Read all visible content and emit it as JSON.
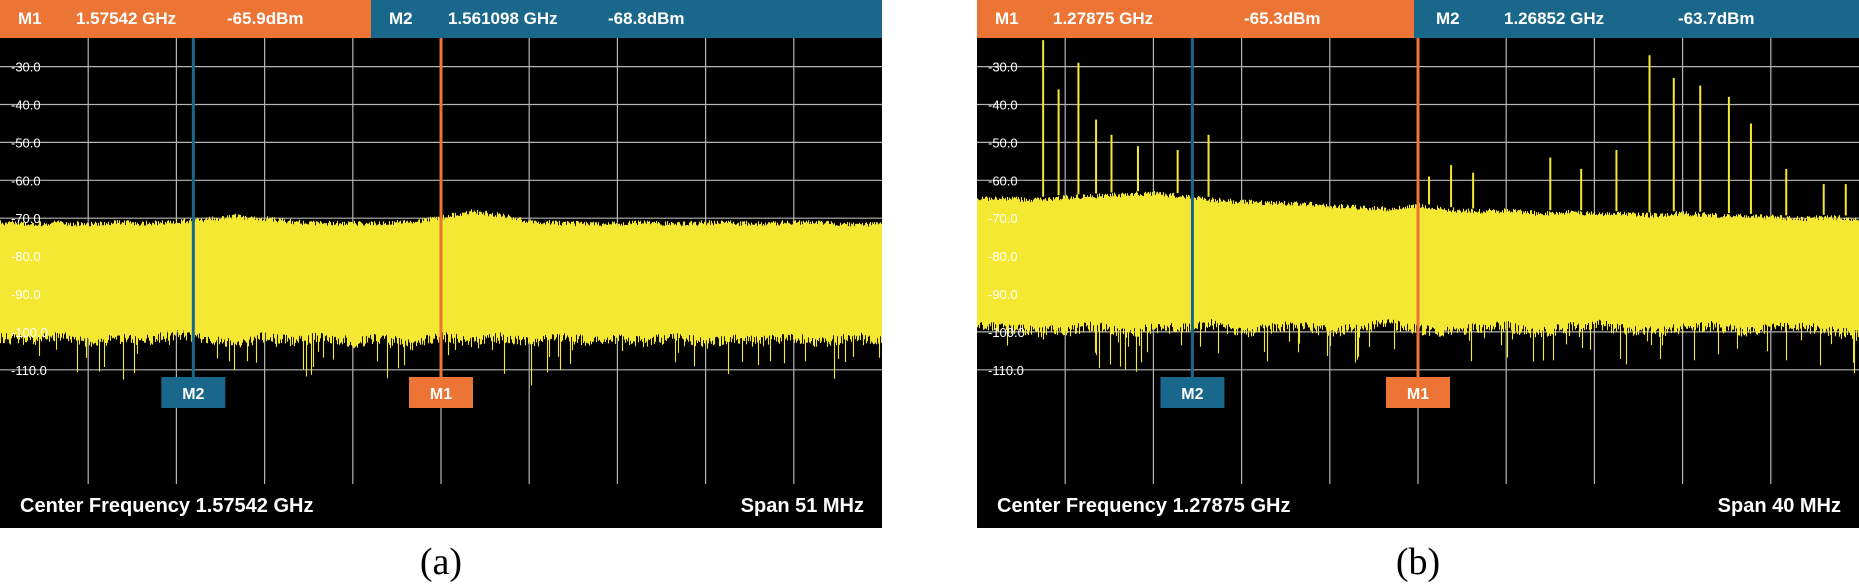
{
  "colors": {
    "marker1": "#ec7434",
    "marker2": "#19678a",
    "trace": "#f4e832",
    "grid": "#b4b4b4",
    "background": "#000000"
  },
  "chart_data": [
    {
      "type": "line",
      "caption": "(a)",
      "markers": [
        {
          "label": "M1",
          "frequency": "1.57542 GHz",
          "level": "-65.9dBm",
          "frequency_ghz": 1.57542,
          "level_dbm": -65.9
        },
        {
          "label": "M2",
          "frequency": "1.561098 GHz",
          "level": "-68.8dBm",
          "frequency_ghz": 1.561098,
          "level_dbm": -68.8
        }
      ],
      "center_frequency_label": "Center Frequency 1.57542 GHz",
      "span_label": "Span 51 MHz",
      "center_frequency_ghz": 1.57542,
      "span_mhz": 51,
      "xlim_ghz": [
        1.54992,
        1.60092
      ],
      "y_tick_labels": [
        "-30.0",
        "-40.0",
        "-50.0",
        "-60.0",
        "-70.0",
        "-80.0",
        "-90.0",
        "-100.0",
        "-110.0"
      ],
      "ylim": [
        -120,
        -21
      ],
      "grid": true,
      "series": [
        {
          "upper_envelope_dbm": [
            -70.5,
            -70.8,
            -70.6,
            -70.9,
            -70.5,
            -70.6,
            -70.2,
            -69.6,
            -68.8,
            -69.4,
            -70.3,
            -70.7,
            -70.6,
            -70.8,
            -70.2,
            -69.2,
            -67.5,
            -68.5,
            -70.1,
            -70.6,
            -70.8,
            -70.7,
            -70.4,
            -70.9,
            -70.5,
            -70.6,
            -70.8,
            -70.3,
            -70.7,
            -70.8,
            -71.0
          ],
          "lower_envelope_dbm": [
            -101.5,
            -102.5,
            -101.0,
            -103.0,
            -101.8,
            -102.2,
            -100.6,
            -101.9,
            -103.2,
            -101.3,
            -102.6,
            -101.1,
            -102.9,
            -101.7,
            -103.4,
            -101.2,
            -102.8,
            -101.6,
            -103.0,
            -101.4,
            -102.3,
            -101.9,
            -102.7,
            -101.2,
            -103.1,
            -101.8,
            -102.4,
            -101.6,
            -102.9,
            -101.3,
            -102.0
          ]
        }
      ]
    },
    {
      "type": "line",
      "caption": "(b)",
      "markers": [
        {
          "label": "M1",
          "frequency": "1.27875 GHz",
          "level": "-65.3dBm",
          "frequency_ghz": 1.27875,
          "level_dbm": -65.3
        },
        {
          "label": "M2",
          "frequency": "1.26852 GHz",
          "level": "-63.7dBm",
          "frequency_ghz": 1.26852,
          "level_dbm": -63.7
        }
      ],
      "center_frequency_label": "Center Frequency 1.27875 GHz",
      "span_label": "Span 40 MHz",
      "center_frequency_ghz": 1.27875,
      "span_mhz": 40,
      "xlim_ghz": [
        1.25875,
        1.29875
      ],
      "y_tick_labels": [
        "-30.0",
        "-40.0",
        "-50.0",
        "-60.0",
        "-70.0",
        "-80.0",
        "-90.0",
        "-100.0",
        "-110.0"
      ],
      "ylim": [
        -120,
        -21
      ],
      "grid": true,
      "series": [
        {
          "upper_envelope_dbm": [
            -64.0,
            -64.2,
            -64.5,
            -63.8,
            -63.5,
            -63.0,
            -62.8,
            -63.5,
            -64.5,
            -65.0,
            -65.3,
            -65.5,
            -66.0,
            -66.5,
            -66.8,
            -66.0,
            -67.0,
            -67.5,
            -67.2,
            -68.0,
            -67.8,
            -68.0,
            -68.2,
            -68.5,
            -68.0,
            -68.5,
            -68.8,
            -69.0,
            -69.5,
            -69.0,
            -69.5
          ],
          "lower_envelope_dbm": [
            -98.0,
            -99.0,
            -100.0,
            -99.5,
            -98.5,
            -100.5,
            -99.0,
            -99.0,
            -98.0,
            -100.5,
            -99.0,
            -98.5,
            -100.0,
            -99.0,
            -98.0,
            -99.5,
            -100.0,
            -99.0,
            -98.5,
            -100.5,
            -99.0,
            -98.0,
            -99.5,
            -100.0,
            -99.0,
            -98.5,
            -100.0,
            -99.0,
            -98.5,
            -100.0,
            -101.0
          ],
          "spurs": [
            {
              "frequency_ghz": 1.26175,
              "peak_dbm": -23.0
            },
            {
              "frequency_ghz": 1.26245,
              "peak_dbm": -36.0
            },
            {
              "frequency_ghz": 1.26335,
              "peak_dbm": -29.0
            },
            {
              "frequency_ghz": 1.26415,
              "peak_dbm": -44.0
            },
            {
              "frequency_ghz": 1.26485,
              "peak_dbm": -48.0
            },
            {
              "frequency_ghz": 1.26605,
              "peak_dbm": -51.0
            },
            {
              "frequency_ghz": 1.26785,
              "peak_dbm": -52.0
            },
            {
              "frequency_ghz": 1.26925,
              "peak_dbm": -48.0
            },
            {
              "frequency_ghz": 1.27925,
              "peak_dbm": -59.0
            },
            {
              "frequency_ghz": 1.28025,
              "peak_dbm": -56.0
            },
            {
              "frequency_ghz": 1.28125,
              "peak_dbm": -58.0
            },
            {
              "frequency_ghz": 1.28475,
              "peak_dbm": -54.0
            },
            {
              "frequency_ghz": 1.28615,
              "peak_dbm": -57.0
            },
            {
              "frequency_ghz": 1.28775,
              "peak_dbm": -52.0
            },
            {
              "frequency_ghz": 1.28925,
              "peak_dbm": -27.0
            },
            {
              "frequency_ghz": 1.29035,
              "peak_dbm": -33.0
            },
            {
              "frequency_ghz": 1.29155,
              "peak_dbm": -35.0
            },
            {
              "frequency_ghz": 1.29285,
              "peak_dbm": -38.0
            },
            {
              "frequency_ghz": 1.29385,
              "peak_dbm": -45.0
            },
            {
              "frequency_ghz": 1.29545,
              "peak_dbm": -57.0
            },
            {
              "frequency_ghz": 1.29715,
              "peak_dbm": -61.0
            },
            {
              "frequency_ghz": 1.29815,
              "peak_dbm": -61.0
            }
          ]
        }
      ]
    }
  ]
}
